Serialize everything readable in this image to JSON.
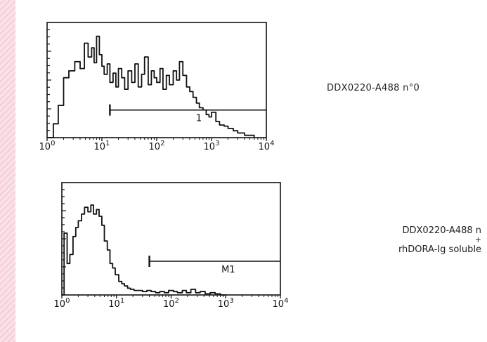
{
  "chart_data": [
    {
      "type": "histogram",
      "x_scale": "log",
      "xlim": [
        1,
        10000
      ],
      "x_ticks": [
        {
          "value": 1,
          "base": "10",
          "exp": "0"
        },
        {
          "value": 10,
          "base": "10",
          "exp": "1"
        },
        {
          "value": 100,
          "base": "10",
          "exp": "2"
        },
        {
          "value": 1000,
          "base": "10",
          "exp": "3"
        },
        {
          "value": 10000,
          "base": "10",
          "exp": "4"
        }
      ],
      "y_scale": "counts",
      "ylim": [
        0,
        100
      ],
      "marker": {
        "label": "1",
        "start": 14,
        "end": 10000,
        "level": 24
      },
      "series": [
        {
          "x": [
            1.0,
            1.3,
            1.6,
            2.0,
            2.5,
            3.2,
            4.0,
            4.8,
            5.6,
            6.5,
            7.2,
            8.0,
            9.0,
            10,
            11,
            12.5,
            14,
            16,
            18,
            20,
            23,
            26,
            30,
            35,
            40,
            46,
            53,
            60,
            70,
            80,
            90,
            100,
            115,
            130,
            150,
            170,
            200,
            230,
            260,
            300,
            350,
            400,
            460,
            530,
            600,
            700,
            800,
            900,
            1000,
            1200,
            1400,
            1700,
            2000,
            2500,
            3000,
            4000,
            6000
          ],
          "y": [
            0,
            12,
            28,
            52,
            58,
            66,
            60,
            82,
            70,
            78,
            65,
            88,
            72,
            62,
            55,
            64,
            48,
            56,
            44,
            60,
            52,
            42,
            58,
            48,
            64,
            44,
            55,
            70,
            46,
            58,
            52,
            48,
            60,
            42,
            54,
            46,
            58,
            50,
            66,
            54,
            44,
            40,
            35,
            30,
            26,
            24,
            20,
            18,
            22,
            14,
            11,
            10,
            8,
            6,
            4,
            2,
            0
          ]
        }
      ]
    },
    {
      "type": "histogram",
      "x_scale": "log",
      "xlim": [
        1,
        10000
      ],
      "x_ticks": [
        {
          "value": 1,
          "base": "10",
          "exp": "0"
        },
        {
          "value": 10,
          "base": "10",
          "exp": "1"
        },
        {
          "value": 100,
          "base": "10",
          "exp": "2"
        },
        {
          "value": 1000,
          "base": "10",
          "exp": "3"
        },
        {
          "value": 10000,
          "base": "10",
          "exp": "4"
        }
      ],
      "y_scale": "counts",
      "ylim": [
        0,
        100
      ],
      "marker": {
        "label": "M1",
        "start": 40,
        "end": 10000,
        "level": 30
      },
      "series": [
        {
          "x": [
            1.0,
            1.1,
            1.25,
            1.4,
            1.6,
            1.8,
            2.0,
            2.3,
            2.6,
            3.0,
            3.4,
            3.8,
            4.3,
            4.8,
            5.4,
            6.0,
            6.8,
            7.6,
            8.5,
            9.5,
            11,
            12.5,
            14,
            16,
            18,
            21,
            25,
            30,
            36,
            43,
            52,
            62,
            75,
            90,
            110,
            130,
            160,
            190,
            230,
            280,
            340,
            420,
            520,
            640,
            800,
            1000
          ],
          "y": [
            0,
            55,
            28,
            36,
            52,
            60,
            66,
            72,
            78,
            74,
            80,
            72,
            76,
            70,
            62,
            48,
            40,
            28,
            24,
            18,
            12,
            10,
            8,
            6,
            5,
            4,
            4,
            3,
            4,
            3,
            2,
            3,
            2,
            4,
            3,
            2,
            4,
            2,
            5,
            2,
            3,
            1,
            2,
            1,
            0,
            0
          ]
        }
      ]
    }
  ],
  "labels": {
    "panel1": "DDX0220-A488 n°0",
    "panel2_line1": "DDX0220-A488 n",
    "panel2_plus": "+",
    "panel2_line2": "rhDORA-Ig soluble"
  },
  "colors": {
    "ink": "#111111",
    "strip": "#f8dbe4"
  }
}
